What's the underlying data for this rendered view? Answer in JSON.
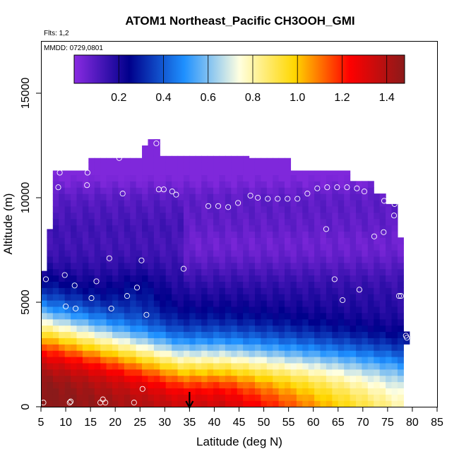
{
  "chart_data": {
    "type": "heatmap",
    "title": "ATOM1 Northeast_Pacific CH3OOH_GMI",
    "annotations": [
      "Flts: 1,2",
      "MMDD: 0729,0801"
    ],
    "xlabel": "Latitude (deg N)",
    "ylabel": "Altitude (m)",
    "xlim": [
      5,
      85
    ],
    "ylim": [
      0,
      17500
    ],
    "x_ticks": [
      5,
      10,
      15,
      20,
      25,
      30,
      35,
      40,
      45,
      50,
      55,
      60,
      65,
      70,
      75,
      80,
      85
    ],
    "y_ticks": [
      0,
      5000,
      10000,
      15000
    ],
    "colorbar": {
      "range": [
        0,
        1.48
      ],
      "ticks": [
        0.2,
        0.4,
        0.6,
        0.8,
        1.0,
        1.2,
        1.4
      ],
      "tick_labels": [
        "0.2",
        "0.4",
        "0.6",
        "0.8",
        "1.0",
        "1.2",
        "1.4"
      ],
      "colors": [
        "#8a2be2",
        "#00008b",
        "#1e90ff",
        "#ffffe0",
        "#ffd700",
        "#ff0000",
        "#8b1a1a"
      ]
    },
    "grid": false,
    "arrow_marker_latitude": 35,
    "flight_points": [
      [
        5.5,
        200
      ],
      [
        6,
        6100
      ],
      [
        8.5,
        10500
      ],
      [
        8.8,
        11200
      ],
      [
        9.8,
        6300
      ],
      [
        10,
        4800
      ],
      [
        10.8,
        200
      ],
      [
        11,
        250
      ],
      [
        11.8,
        5800
      ],
      [
        12,
        4700
      ],
      [
        14.3,
        10600
      ],
      [
        14.4,
        11200
      ],
      [
        15.2,
        5200
      ],
      [
        16.2,
        6000
      ],
      [
        17,
        200
      ],
      [
        17.5,
        350
      ],
      [
        18,
        200
      ],
      [
        18.8,
        7100
      ],
      [
        19.2,
        4700
      ],
      [
        20.8,
        11900
      ],
      [
        21.5,
        10200
      ],
      [
        22.4,
        5300
      ],
      [
        23.8,
        200
      ],
      [
        24.4,
        5700
      ],
      [
        25.3,
        7000
      ],
      [
        25.5,
        850
      ],
      [
        26.3,
        4400
      ],
      [
        28.3,
        12600
      ],
      [
        28.8,
        10400
      ],
      [
        29.8,
        10400
      ],
      [
        31.2,
        12600
      ],
      [
        31.5,
        10300
      ],
      [
        32.3,
        10150
      ],
      [
        33.8,
        6600
      ],
      [
        38.8,
        9600
      ],
      [
        40.8,
        9600
      ],
      [
        42.8,
        9550
      ],
      [
        44.8,
        9750
      ],
      [
        47.3,
        10100
      ],
      [
        48.8,
        10000
      ],
      [
        50.8,
        9950
      ],
      [
        52.8,
        9950
      ],
      [
        54.8,
        9950
      ],
      [
        56.8,
        9950
      ],
      [
        58.8,
        10200
      ],
      [
        60.8,
        10450
      ],
      [
        62.8,
        10500
      ],
      [
        64.8,
        10500
      ],
      [
        66.8,
        10500
      ],
      [
        68.8,
        10450
      ],
      [
        70.3,
        10300
      ],
      [
        62.6,
        8500
      ],
      [
        64.3,
        6100
      ],
      [
        65.9,
        5100
      ],
      [
        69.3,
        5600
      ],
      [
        72.3,
        8150
      ],
      [
        74.2,
        8350
      ],
      [
        74.3,
        9850
      ],
      [
        76.3,
        9150
      ],
      [
        76.4,
        9700
      ],
      [
        77.3,
        5300
      ],
      [
        77.7,
        5300
      ],
      [
        78.7,
        3400
      ],
      [
        78.9,
        3300
      ],
      [
        78.9,
        200
      ]
    ]
  }
}
